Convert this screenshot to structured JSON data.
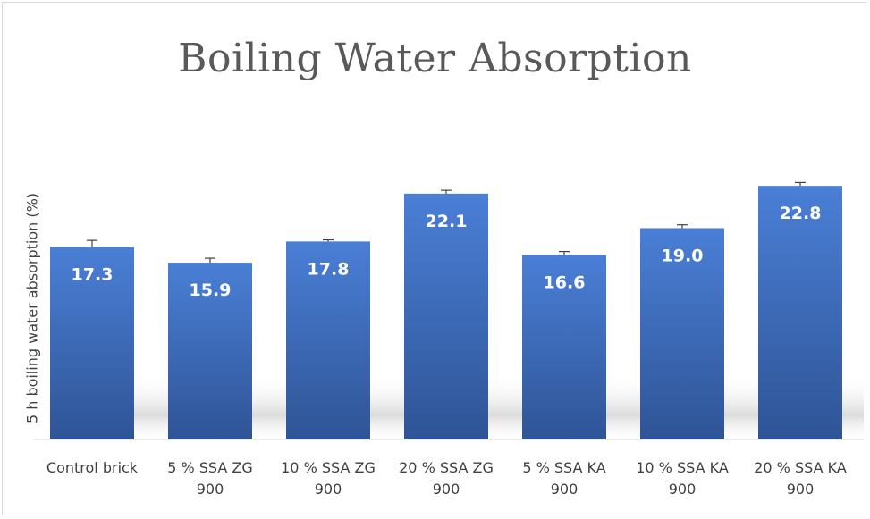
{
  "chart_data": {
    "type": "bar",
    "title": "Boiling Water Absorption",
    "xlabel": "",
    "ylabel": "5 h boiling water absorption (%)",
    "categories": [
      [
        "Control brick"
      ],
      [
        "5 % SSA ZG",
        "900"
      ],
      [
        "10 % SSA ZG",
        "900"
      ],
      [
        "20 % SSA ZG",
        "900"
      ],
      [
        "5 % SSA KA",
        "900"
      ],
      [
        "10 % SSA KA",
        "900"
      ],
      [
        "20 % SSA KA",
        "900"
      ]
    ],
    "values": [
      17.3,
      15.9,
      17.8,
      22.1,
      16.6,
      19.0,
      22.8
    ],
    "errors": [
      0.6,
      0.4,
      0.15,
      0.3,
      0.3,
      0.3,
      0.3
    ],
    "data_labels": [
      "17.3",
      "15.9",
      "17.8",
      "22.1",
      "16.6",
      "19.0",
      "22.8"
    ],
    "ylim": [
      0,
      25
    ],
    "grid": false,
    "legend": "none",
    "colors": {
      "bar": "#4472c4",
      "bar_dark": "#2f5496",
      "label": "#ffffff"
    }
  }
}
